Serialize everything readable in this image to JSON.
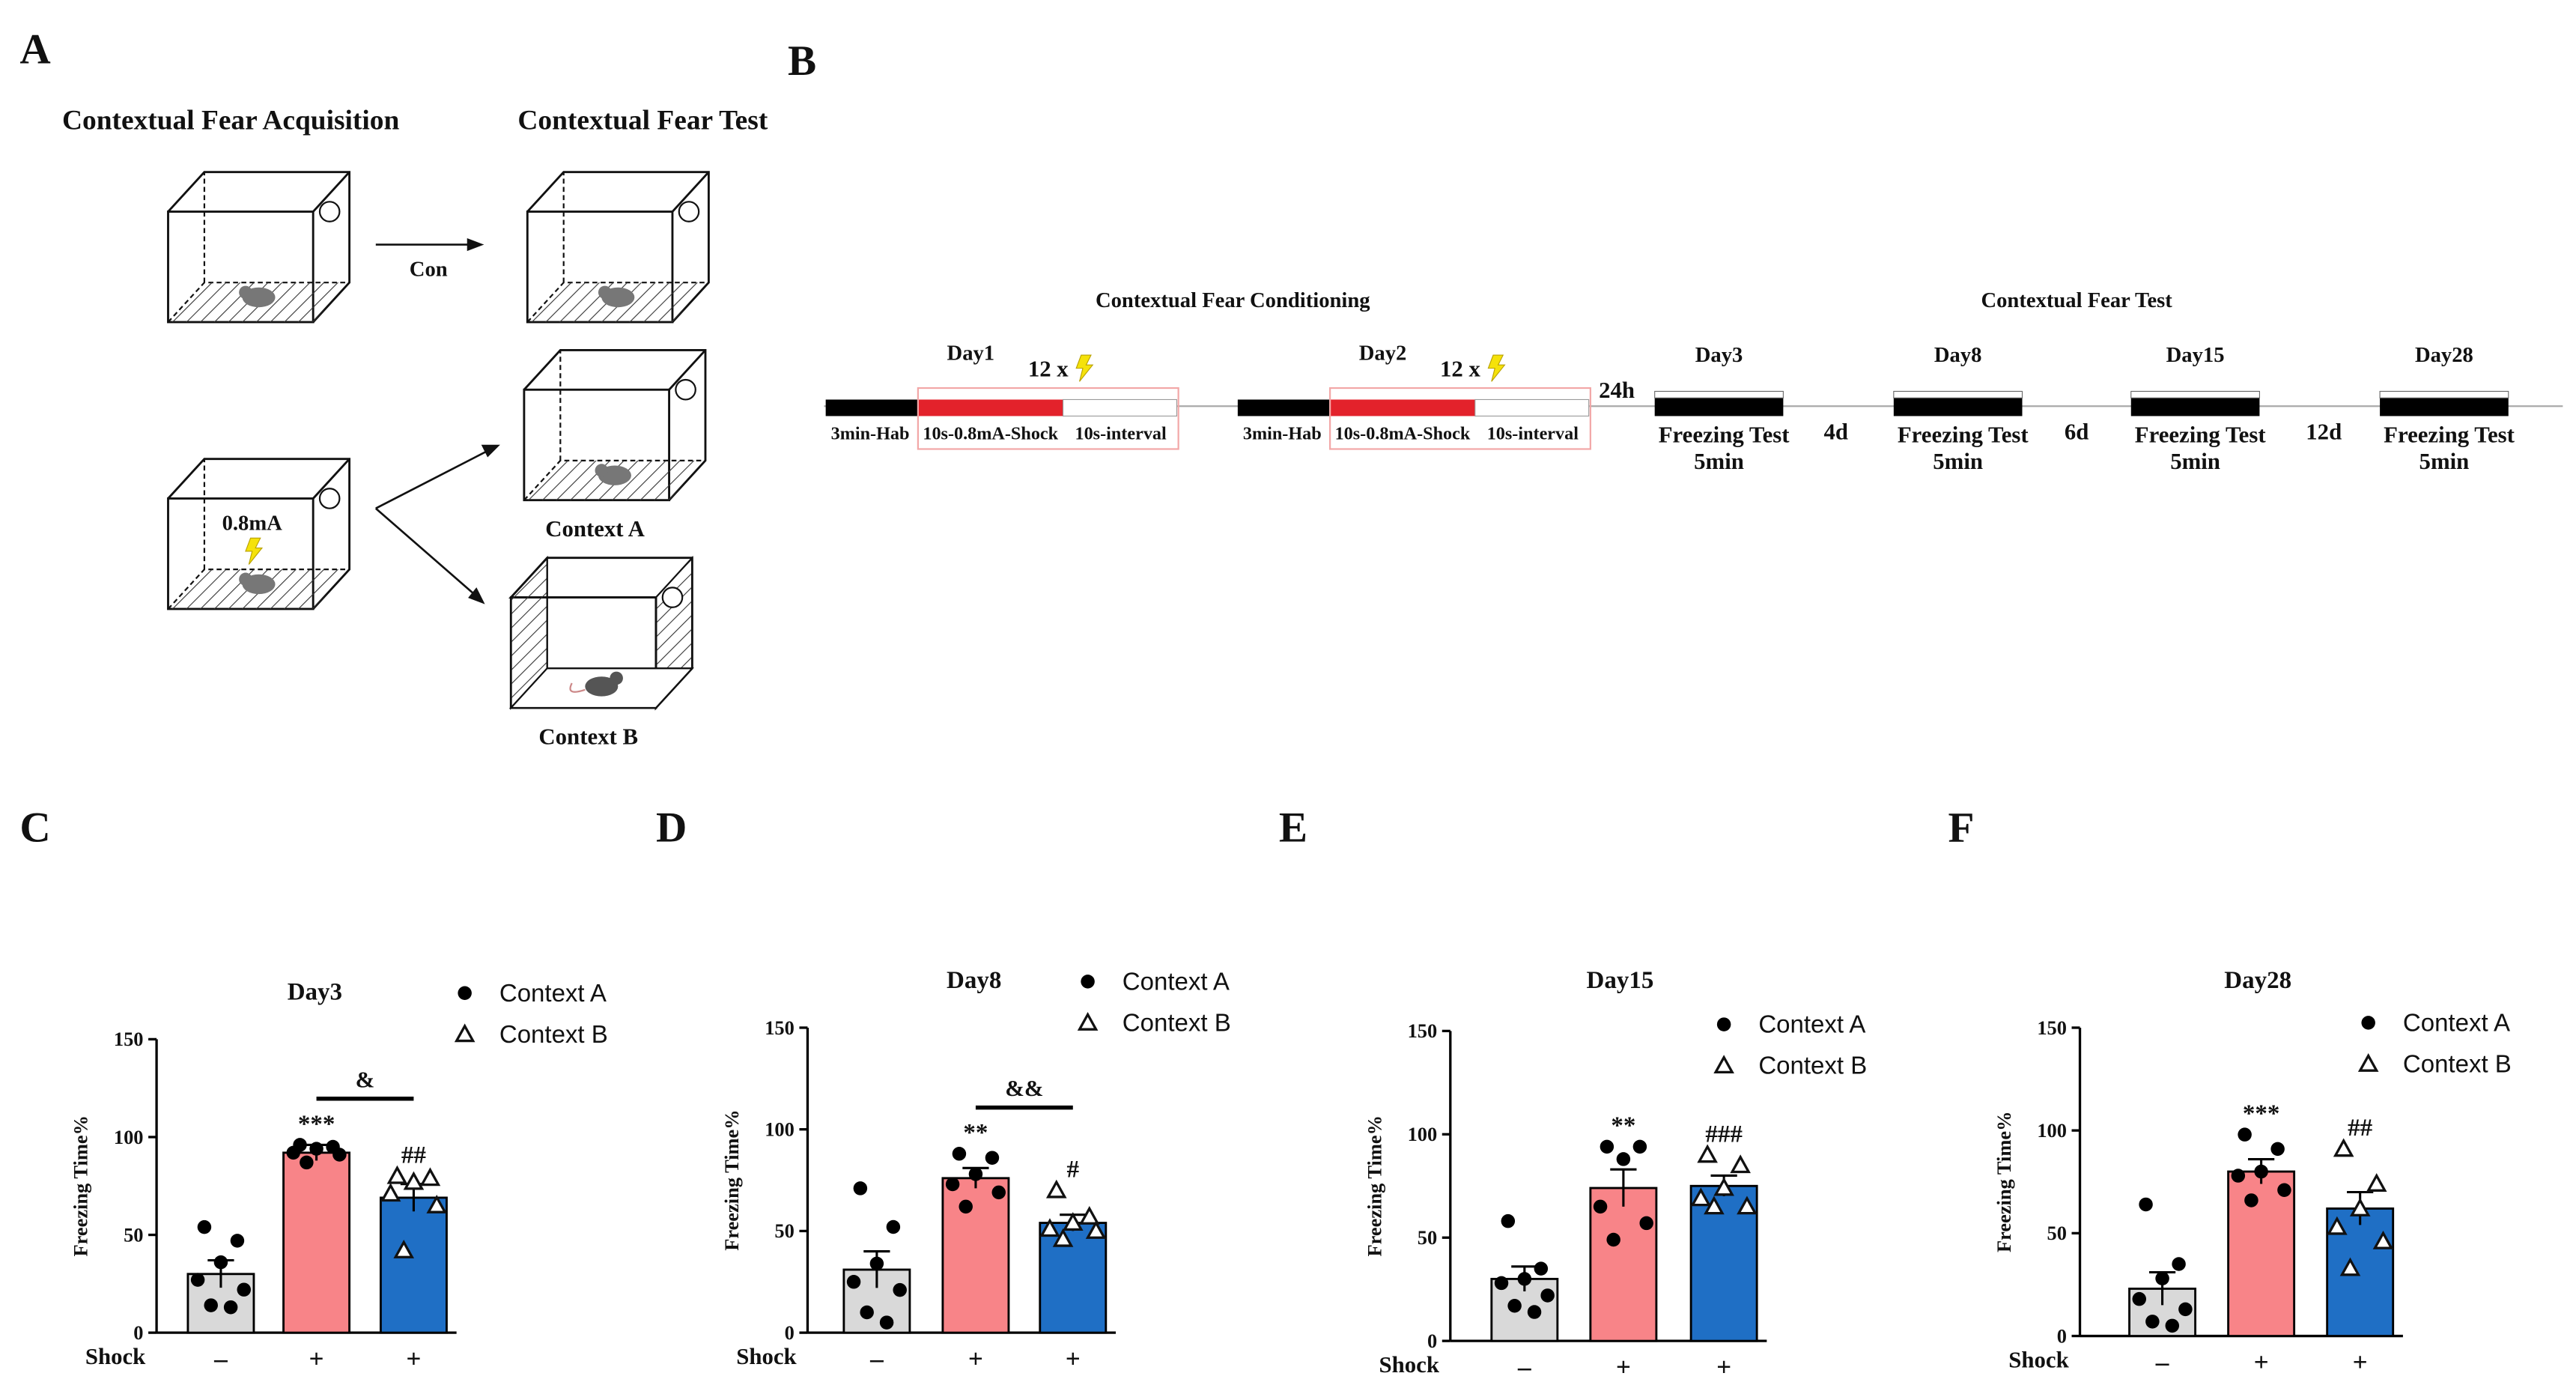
{
  "panel_labels": [
    "A",
    "B",
    "C",
    "D",
    "E",
    "F"
  ],
  "panel_a": {
    "title_left": "Contextual Fear Acquisition",
    "title_right": "Contextual Fear Test",
    "arrow_label": "Con",
    "shock_label": "0.8mA",
    "context_a": "Context A",
    "context_b": "Context B"
  },
  "panel_b": {
    "title_left": "Contextual Fear Conditioning",
    "title_right": "Contextual Fear Test",
    "conditioning_days": [
      {
        "day": "Day1",
        "shocks": "12 x",
        "hab": "3min-Hab",
        "shock": "10s-0.8mA-Shock",
        "interval": "10s-interval"
      },
      {
        "day": "Day2",
        "shocks": "12 x",
        "hab": "3min-Hab",
        "shock": "10s-0.8mA-Shock",
        "interval": "10s-interval"
      }
    ],
    "first_gap": "24h",
    "test_days": [
      {
        "day": "Day3",
        "label": "Freezing Test",
        "duration": "5min"
      },
      {
        "day": "Day8",
        "label": "Freezing Test",
        "duration": "5min"
      },
      {
        "day": "Day15",
        "label": "Freezing Test",
        "duration": "5min"
      },
      {
        "day": "Day28",
        "label": "Freezing Test",
        "duration": "5min"
      }
    ],
    "test_gaps": [
      "4d",
      "6d",
      "12d"
    ]
  },
  "chart_data": [
    {
      "type": "bar",
      "title": "Day3",
      "ylabel": "Freezing Time%",
      "xlabel": "Shock",
      "categories": [
        "–",
        "+",
        "+"
      ],
      "colors": [
        "#d9d9d9",
        "#f88488",
        "#1f6fc5"
      ],
      "values": [
        30,
        92,
        69
      ],
      "errors": [
        7,
        4,
        7
      ],
      "points": [
        [
          54,
          47,
          36,
          27,
          22,
          14,
          13
        ],
        [
          96,
          95,
          94,
          92,
          91,
          87
        ],
        [
          80,
          79,
          77,
          71,
          65,
          42
        ]
      ],
      "markers": [
        "circle",
        "circle",
        "triangle"
      ],
      "legend": [
        {
          "name": "Context A",
          "marker": "circle"
        },
        {
          "name": "Context B",
          "marker": "triangle"
        }
      ],
      "annotations": [
        null,
        "***",
        "##"
      ],
      "bracket_label": "&",
      "ylim": [
        0,
        150
      ],
      "yticks": [
        0,
        50,
        100,
        150
      ]
    },
    {
      "type": "bar",
      "title": "Day8",
      "ylabel": "Freezing Time%",
      "xlabel": "Shock",
      "categories": [
        "–",
        "+",
        "+"
      ],
      "colors": [
        "#d9d9d9",
        "#f88488",
        "#1f6fc5"
      ],
      "values": [
        31,
        76,
        54
      ],
      "errors": [
        9,
        5,
        4
      ],
      "points": [
        [
          71,
          52,
          34,
          25,
          21,
          10,
          5
        ],
        [
          88,
          86,
          78,
          73,
          69,
          62
        ],
        [
          70,
          57,
          54,
          51,
          50,
          46
        ]
      ],
      "markers": [
        "circle",
        "circle",
        "triangle"
      ],
      "legend": [
        {
          "name": "Context A",
          "marker": "circle"
        },
        {
          "name": "Context B",
          "marker": "triangle"
        }
      ],
      "annotations": [
        null,
        "**",
        "#"
      ],
      "bracket_label": "&&",
      "ylim": [
        0,
        150
      ],
      "yticks": [
        0,
        50,
        100,
        150
      ]
    },
    {
      "type": "bar",
      "title": "Day15",
      "ylabel": "Freezing Time%",
      "xlabel": "Shock",
      "categories": [
        "–",
        "+",
        "+"
      ],
      "colors": [
        "#d9d9d9",
        "#f88488",
        "#1f6fc5"
      ],
      "values": [
        30,
        74,
        75
      ],
      "errors": [
        6,
        9,
        5
      ],
      "points": [
        [
          58,
          35,
          30,
          28,
          22,
          17,
          14
        ],
        [
          94,
          94,
          88,
          65,
          57,
          49
        ],
        [
          90,
          85,
          74,
          69,
          65,
          65
        ]
      ],
      "markers": [
        "circle",
        "circle",
        "triangle"
      ],
      "legend": [
        {
          "name": "Context A",
          "marker": "circle"
        },
        {
          "name": "Context B",
          "marker": "triangle"
        }
      ],
      "annotations": [
        null,
        "**",
        "###"
      ],
      "ylim": [
        0,
        150
      ],
      "yticks": [
        0,
        50,
        100,
        150
      ]
    },
    {
      "type": "bar",
      "title": "Day28",
      "ylabel": "Freezing Time%",
      "xlabel": "Shock",
      "categories": [
        "–",
        "+",
        "+"
      ],
      "colors": [
        "#d9d9d9",
        "#f88488",
        "#1f6fc5"
      ],
      "values": [
        23,
        80,
        62
      ],
      "errors": [
        8,
        6,
        8
      ],
      "points": [
        [
          64,
          35,
          28,
          18,
          13,
          7,
          5
        ],
        [
          98,
          91,
          80,
          78,
          71,
          66
        ],
        [
          91,
          74,
          62,
          53,
          46,
          33
        ]
      ],
      "markers": [
        "circle",
        "circle",
        "triangle"
      ],
      "legend": [
        {
          "name": "Context A",
          "marker": "circle"
        },
        {
          "name": "Context B",
          "marker": "triangle"
        }
      ],
      "annotations": [
        null,
        "***",
        "##"
      ],
      "ylim": [
        0,
        150
      ],
      "yticks": [
        0,
        50,
        100,
        150
      ]
    }
  ]
}
